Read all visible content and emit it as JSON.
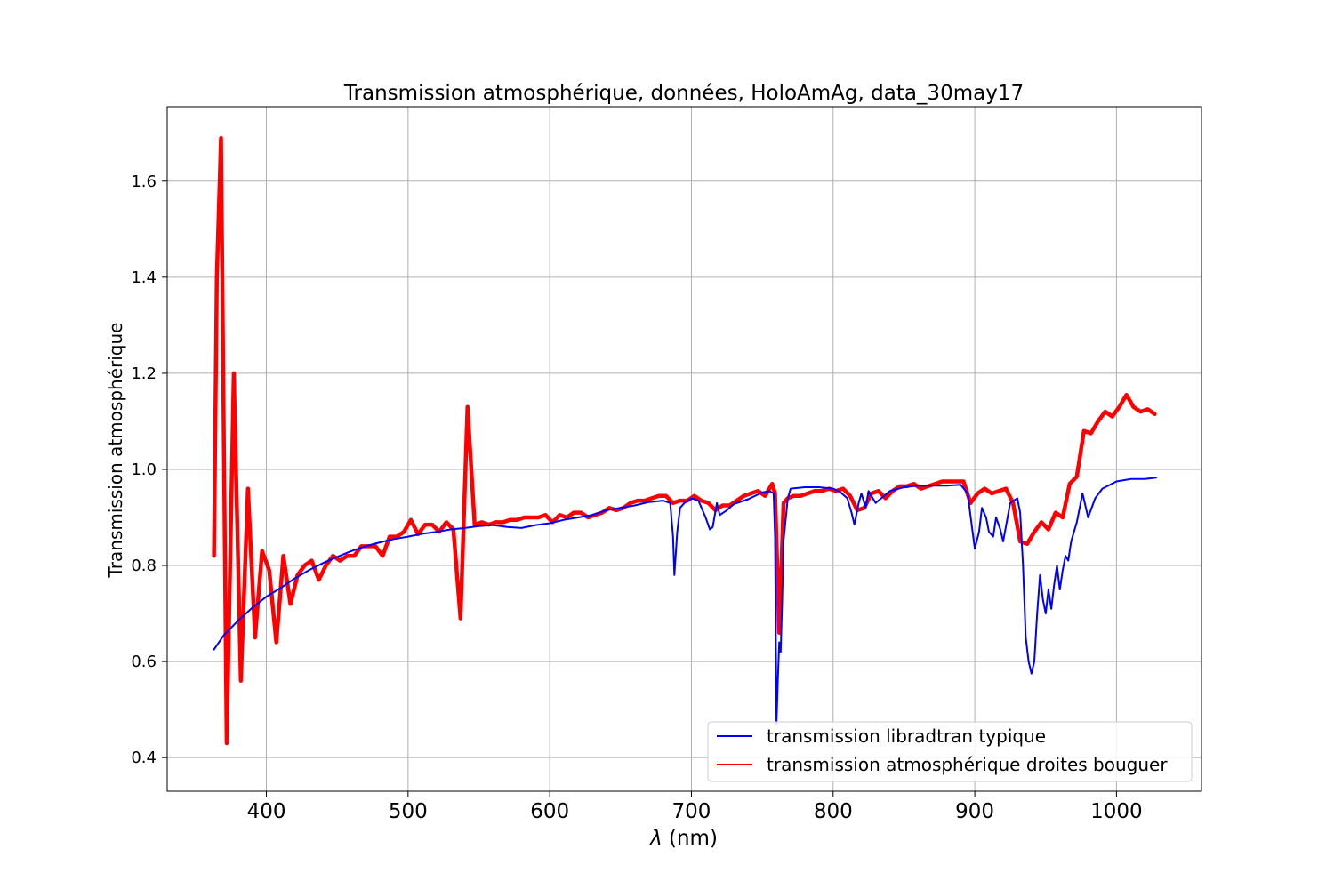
{
  "chart_data": {
    "type": "line",
    "title": "Transmission atmosphérique, données, HoloAmAg, data_30may17",
    "xlabel_symbol": "λ",
    "xlabel_unit": " (nm)",
    "ylabel": "Transmission atmosphérique",
    "xlim": [
      330,
      1060
    ],
    "ylim": [
      0.33,
      1.755
    ],
    "xticks": [
      400,
      500,
      600,
      700,
      800,
      900,
      1000
    ],
    "yticks": [
      0.4,
      0.6,
      0.8,
      1.0,
      1.2,
      1.4,
      1.6
    ],
    "xtick_labels": [
      "400",
      "500",
      "600",
      "700",
      "800",
      "900",
      "1000"
    ],
    "ytick_labels": [
      "0.4",
      "0.6",
      "0.8",
      "1.0",
      "1.2",
      "1.4",
      "1.6"
    ],
    "grid": true,
    "legend": "lower-right",
    "colors": {
      "libradtran": "#0000ff",
      "bouguer": "#ff0000"
    },
    "series": [
      {
        "name": "transmission libradtran typique",
        "x": [
          363,
          370,
          380,
          390,
          400,
          410,
          420,
          430,
          440,
          450,
          460,
          470,
          480,
          490,
          500,
          510,
          520,
          530,
          540,
          550,
          560,
          570,
          580,
          590,
          600,
          610,
          620,
          630,
          640,
          650,
          660,
          670,
          680,
          685,
          687,
          688,
          690,
          692,
          695,
          700,
          705,
          710,
          713,
          715,
          718,
          720,
          725,
          730,
          740,
          750,
          755,
          758,
          759,
          760,
          761,
          762,
          763,
          764,
          765,
          768,
          770,
          780,
          790,
          800,
          805,
          810,
          813,
          815,
          818,
          820,
          823,
          825,
          828,
          830,
          840,
          850,
          860,
          870,
          880,
          890,
          895,
          898,
          900,
          903,
          905,
          908,
          910,
          913,
          915,
          918,
          920,
          925,
          930,
          932,
          934,
          936,
          938,
          940,
          942,
          944,
          946,
          948,
          950,
          952,
          954,
          956,
          958,
          960,
          962,
          964,
          966,
          968,
          970,
          972,
          974,
          976,
          980,
          985,
          990,
          1000,
          1010,
          1020,
          1028
        ],
        "y": [
          0.625,
          0.655,
          0.685,
          0.712,
          0.735,
          0.753,
          0.773,
          0.79,
          0.805,
          0.818,
          0.83,
          0.84,
          0.848,
          0.855,
          0.86,
          0.866,
          0.87,
          0.875,
          0.878,
          0.882,
          0.884,
          0.88,
          0.878,
          0.884,
          0.888,
          0.895,
          0.9,
          0.905,
          0.915,
          0.92,
          0.925,
          0.932,
          0.935,
          0.93,
          0.86,
          0.78,
          0.87,
          0.92,
          0.93,
          0.94,
          0.935,
          0.9,
          0.875,
          0.88,
          0.93,
          0.905,
          0.915,
          0.928,
          0.938,
          0.952,
          0.955,
          0.95,
          0.86,
          0.47,
          0.56,
          0.64,
          0.62,
          0.72,
          0.85,
          0.94,
          0.96,
          0.963,
          0.963,
          0.96,
          0.953,
          0.94,
          0.91,
          0.885,
          0.93,
          0.95,
          0.92,
          0.955,
          0.94,
          0.93,
          0.955,
          0.963,
          0.966,
          0.966,
          0.966,
          0.968,
          0.95,
          0.88,
          0.835,
          0.87,
          0.92,
          0.9,
          0.87,
          0.86,
          0.9,
          0.875,
          0.85,
          0.93,
          0.94,
          0.91,
          0.8,
          0.65,
          0.6,
          0.575,
          0.6,
          0.7,
          0.78,
          0.73,
          0.7,
          0.75,
          0.71,
          0.76,
          0.8,
          0.75,
          0.79,
          0.82,
          0.81,
          0.85,
          0.87,
          0.89,
          0.92,
          0.95,
          0.9,
          0.94,
          0.96,
          0.975,
          0.98,
          0.98,
          0.983
        ]
      },
      {
        "name": "transmission atmosphérique droites bouguer",
        "x": [
          363,
          365,
          368,
          372,
          377,
          382,
          387,
          392,
          397,
          402,
          407,
          412,
          417,
          422,
          427,
          432,
          437,
          442,
          447,
          452,
          457,
          462,
          467,
          472,
          477,
          482,
          487,
          492,
          497,
          502,
          507,
          512,
          517,
          522,
          527,
          532,
          537,
          542,
          547,
          552,
          557,
          562,
          567,
          572,
          577,
          582,
          587,
          592,
          597,
          602,
          607,
          612,
          617,
          622,
          627,
          632,
          637,
          642,
          647,
          652,
          657,
          662,
          667,
          672,
          677,
          682,
          687,
          692,
          697,
          702,
          707,
          712,
          717,
          722,
          727,
          732,
          737,
          742,
          747,
          752,
          757,
          759,
          762,
          765,
          768,
          772,
          777,
          782,
          787,
          792,
          797,
          802,
          807,
          812,
          817,
          822,
          827,
          832,
          837,
          842,
          847,
          852,
          857,
          862,
          867,
          872,
          877,
          882,
          887,
          892,
          897,
          902,
          907,
          912,
          917,
          922,
          927,
          932,
          937,
          942,
          947,
          952,
          957,
          962,
          967,
          972,
          977,
          982,
          987,
          992,
          997,
          1002,
          1007,
          1012,
          1017,
          1022,
          1027
        ],
        "y": [
          0.82,
          1.4,
          1.69,
          0.43,
          1.2,
          0.56,
          0.96,
          0.65,
          0.83,
          0.79,
          0.64,
          0.82,
          0.72,
          0.78,
          0.8,
          0.81,
          0.77,
          0.8,
          0.82,
          0.81,
          0.82,
          0.82,
          0.84,
          0.84,
          0.84,
          0.82,
          0.86,
          0.86,
          0.87,
          0.895,
          0.865,
          0.885,
          0.885,
          0.87,
          0.89,
          0.875,
          0.69,
          1.13,
          0.885,
          0.89,
          0.885,
          0.89,
          0.89,
          0.895,
          0.895,
          0.9,
          0.9,
          0.9,
          0.905,
          0.89,
          0.905,
          0.9,
          0.91,
          0.91,
          0.9,
          0.905,
          0.91,
          0.92,
          0.915,
          0.92,
          0.93,
          0.935,
          0.935,
          0.94,
          0.945,
          0.945,
          0.93,
          0.935,
          0.935,
          0.945,
          0.935,
          0.93,
          0.915,
          0.925,
          0.925,
          0.935,
          0.945,
          0.95,
          0.955,
          0.945,
          0.97,
          0.95,
          0.66,
          0.93,
          0.94,
          0.945,
          0.945,
          0.95,
          0.955,
          0.955,
          0.96,
          0.955,
          0.96,
          0.945,
          0.915,
          0.92,
          0.95,
          0.955,
          0.94,
          0.955,
          0.965,
          0.965,
          0.97,
          0.96,
          0.965,
          0.97,
          0.975,
          0.975,
          0.975,
          0.975,
          0.93,
          0.95,
          0.96,
          0.95,
          0.955,
          0.96,
          0.93,
          0.85,
          0.845,
          0.87,
          0.89,
          0.875,
          0.91,
          0.9,
          0.97,
          0.985,
          1.08,
          1.075,
          1.1,
          1.12,
          1.11,
          1.13,
          1.155,
          1.13,
          1.12,
          1.125,
          1.115
        ]
      }
    ]
  }
}
